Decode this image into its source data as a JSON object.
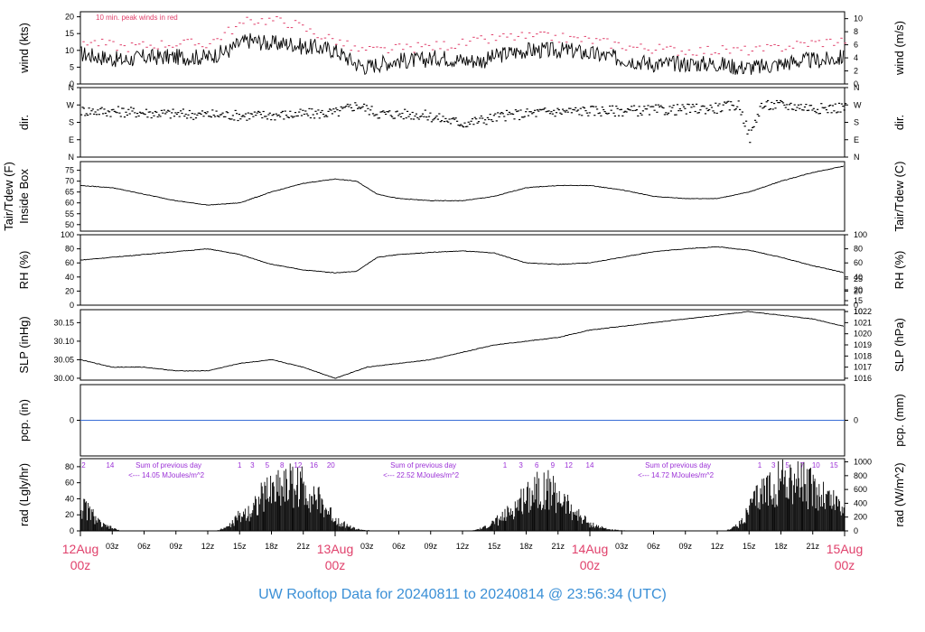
{
  "footer_title": "UW Rooftop Data for 20240811  to  20240814 @ 23:56:34  (UTC)",
  "colors": {
    "peak": "#e0406b",
    "radiation_labels": "#9b30d6",
    "precip_line": "#3a6ed6",
    "date_labels": "#e0406b",
    "title": "#3a8fd6"
  },
  "chart_data": {
    "type": "line",
    "x_axis": {
      "range_hours": [
        0,
        72
      ],
      "hour_ticks": [
        {
          "h": 3,
          "label": "03z"
        },
        {
          "h": 6,
          "label": "06z"
        },
        {
          "h": 9,
          "label": "09z"
        },
        {
          "h": 12,
          "label": "12z"
        },
        {
          "h": 15,
          "label": "15z"
        },
        {
          "h": 18,
          "label": "18z"
        },
        {
          "h": 21,
          "label": "21z"
        },
        {
          "h": 27,
          "label": "03z"
        },
        {
          "h": 30,
          "label": "06z"
        },
        {
          "h": 33,
          "label": "09z"
        },
        {
          "h": 36,
          "label": "12z"
        },
        {
          "h": 39,
          "label": "15z"
        },
        {
          "h": 42,
          "label": "18z"
        },
        {
          "h": 45,
          "label": "21z"
        },
        {
          "h": 51,
          "label": "03z"
        },
        {
          "h": 54,
          "label": "06z"
        },
        {
          "h": 57,
          "label": "09z"
        },
        {
          "h": 60,
          "label": "12z"
        },
        {
          "h": 63,
          "label": "15z"
        },
        {
          "h": 66,
          "label": "18z"
        },
        {
          "h": 69,
          "label": "21z"
        }
      ],
      "date_ticks": [
        {
          "h": 0,
          "date": "12Aug",
          "time": "00z"
        },
        {
          "h": 24,
          "date": "13Aug",
          "time": "00z"
        },
        {
          "h": 48,
          "date": "14Aug",
          "time": "00z"
        },
        {
          "h": 72,
          "date": "15Aug",
          "time": "00z"
        }
      ]
    },
    "panels": [
      {
        "key": "wind",
        "left_label": "wind (kts)",
        "right_label": "wind (m/s)",
        "left_ticks": [
          {
            "v": 0,
            "l": "0"
          },
          {
            "v": 5,
            "l": "5"
          },
          {
            "v": 10,
            "l": "10"
          },
          {
            "v": 15,
            "l": "15"
          },
          {
            "v": 20,
            "l": "20"
          }
        ],
        "right_ticks": [
          {
            "v": 0,
            "l": "0"
          },
          {
            "v": 2,
            "l": "2"
          },
          {
            "v": 4,
            "l": "4"
          },
          {
            "v": 6,
            "l": "6"
          },
          {
            "v": 8,
            "l": "8"
          },
          {
            "v": 10,
            "l": "10"
          }
        ],
        "ylim": [
          0,
          21.5
        ],
        "right_ylim": [
          0,
          11.06
        ],
        "annotation": "10 min. peak winds in red",
        "series": [
          {
            "x": [
              0,
              2,
              4,
              6,
              8,
              10,
              12,
              13,
              14,
              15,
              16,
              18,
              20,
              21,
              22,
              24,
              25,
              26,
              27,
              28,
              30,
              32,
              34,
              36,
              38,
              40,
              42,
              44,
              46,
              48,
              50,
              52,
              54,
              56,
              58,
              60,
              62,
              63,
              64,
              66,
              68,
              70,
              72
            ],
            "y": [
              9,
              8,
              7,
              8,
              8,
              8,
              8,
              9,
              10,
              12,
              13,
              12,
              12,
              11,
              11,
              10,
              8,
              6,
              5,
              6,
              7,
              7,
              8,
              7,
              7,
              9,
              10,
              10,
              10,
              9,
              8,
              7,
              6,
              6,
              6,
              6,
              5,
              5,
              5,
              6,
              7,
              7,
              8
            ]
          }
        ],
        "peak_series": {
          "x": [
            0,
            4,
            8,
            12,
            14,
            16,
            18,
            20,
            22,
            24,
            26,
            28,
            32,
            36,
            40,
            44,
            48,
            52,
            56,
            60,
            64,
            68,
            72
          ],
          "y": [
            13,
            11,
            12,
            12,
            16,
            19,
            19,
            18,
            15,
            13,
            10,
            10,
            11,
            12,
            14,
            14,
            13,
            11,
            10,
            10,
            10,
            12,
            13
          ]
        }
      },
      {
        "key": "dir",
        "left_label": "dir.",
        "right_label": "dir.",
        "left_ticks": [
          {
            "v": 0,
            "l": "N"
          },
          {
            "v": 90,
            "l": "E"
          },
          {
            "v": 180,
            "l": "S"
          },
          {
            "v": 270,
            "l": "W"
          },
          {
            "v": 360,
            "l": "N"
          }
        ],
        "right_ticks": [
          {
            "v": 0,
            "l": "N"
          },
          {
            "v": 90,
            "l": "E"
          },
          {
            "v": 180,
            "l": "S"
          },
          {
            "v": 270,
            "l": "W"
          },
          {
            "v": 360,
            "l": "N"
          }
        ],
        "ylim": [
          0,
          360
        ],
        "series": [
          {
            "x": [
              0,
              4,
              8,
              12,
              16,
              20,
              24,
              26,
              28,
              32,
              36,
              40,
              44,
              48,
              52,
              56,
              60,
              62,
              63,
              64,
              66,
              68,
              70,
              72
            ],
            "y": [
              240,
              235,
              225,
              220,
              215,
              220,
              230,
              270,
              225,
              220,
              175,
              215,
              235,
              240,
              240,
              245,
              255,
              270,
              100,
              265,
              270,
              260,
              250,
              260
            ]
          }
        ]
      },
      {
        "key": "temp",
        "left_label": "Tair/Tdew (F)",
        "left_label2": "Inside Box",
        "right_label": "Tair/Tdew (C)",
        "left_ticks": [
          {
            "v": 50,
            "l": "50"
          },
          {
            "v": 55,
            "l": "55"
          },
          {
            "v": 60,
            "l": "60"
          },
          {
            "v": 65,
            "l": "65"
          },
          {
            "v": 70,
            "l": "70"
          },
          {
            "v": 75,
            "l": "75"
          }
        ],
        "right_ticks": [
          {
            "v": 10,
            "l": "10"
          },
          {
            "v": 15,
            "l": "15"
          },
          {
            "v": 20,
            "l": "20"
          },
          {
            "v": 25,
            "l": "25"
          }
        ],
        "ylim": [
          47,
          79
        ],
        "series": [
          {
            "x": [
              0,
              3,
              6,
              9,
              12,
              15,
              18,
              21,
              24,
              26,
              28,
              30,
              33,
              36,
              39,
              42,
              45,
              48,
              51,
              54,
              57,
              60,
              63,
              66,
              69,
              72
            ],
            "y": [
              68,
              67,
              64,
              61,
              59,
              60,
              65,
              69,
              71,
              70,
              64,
              62,
              61,
              61,
              63,
              67,
              68,
              68,
              66,
              63,
              62,
              62,
              65,
              70,
              74,
              77
            ]
          }
        ]
      },
      {
        "key": "rh",
        "left_label": "RH (%)",
        "right_label": "RH (%)",
        "left_ticks": [
          {
            "v": 0,
            "l": "0"
          },
          {
            "v": 20,
            "l": "20"
          },
          {
            "v": 40,
            "l": "40"
          },
          {
            "v": 60,
            "l": "60"
          },
          {
            "v": 80,
            "l": "80"
          },
          {
            "v": 100,
            "l": "100"
          }
        ],
        "right_ticks": [
          {
            "v": 0,
            "l": "0"
          },
          {
            "v": 20,
            "l": "20"
          },
          {
            "v": 40,
            "l": "40"
          },
          {
            "v": 60,
            "l": "60"
          },
          {
            "v": 80,
            "l": "80"
          },
          {
            "v": 100,
            "l": "100"
          }
        ],
        "ylim": [
          0,
          100
        ],
        "series": [
          {
            "x": [
              0,
              3,
              6,
              9,
              12,
              15,
              18,
              21,
              24,
              26,
              28,
              30,
              33,
              36,
              39,
              42,
              45,
              48,
              51,
              54,
              57,
              60,
              63,
              66,
              69,
              72
            ],
            "y": [
              64,
              68,
              72,
              76,
              80,
              72,
              58,
              50,
              46,
              48,
              68,
              72,
              75,
              77,
              74,
              60,
              58,
              60,
              68,
              76,
              80,
              83,
              78,
              68,
              56,
              46
            ]
          }
        ]
      },
      {
        "key": "slp",
        "left_label": "SLP (inHg)",
        "right_label": "SLP (hPa)",
        "left_ticks": [
          {
            "v": 30.0,
            "l": "30.00"
          },
          {
            "v": 30.05,
            "l": "30.05"
          },
          {
            "v": 30.1,
            "l": "30.10"
          },
          {
            "v": 30.15,
            "l": "30.15"
          }
        ],
        "right_ticks": [
          {
            "v": 30.0,
            "l": "1016"
          },
          {
            "v": 30.03,
            "l": "1017"
          },
          {
            "v": 30.06,
            "l": "1018"
          },
          {
            "v": 30.09,
            "l": "1019"
          },
          {
            "v": 30.12,
            "l": "1020"
          },
          {
            "v": 30.15,
            "l": "1021"
          },
          {
            "v": 30.18,
            "l": "1022"
          }
        ],
        "ylim": [
          29.995,
          30.185
        ],
        "series": [
          {
            "x": [
              0,
              3,
              6,
              9,
              12,
              15,
              18,
              21,
              24,
              25,
              27,
              30,
              33,
              36,
              39,
              42,
              45,
              48,
              51,
              54,
              57,
              60,
              63,
              66,
              69,
              72
            ],
            "y": [
              30.05,
              30.03,
              30.03,
              30.02,
              30.02,
              30.04,
              30.05,
              30.03,
              30.0,
              30.01,
              30.03,
              30.04,
              30.05,
              30.07,
              30.09,
              30.1,
              30.11,
              30.13,
              30.14,
              30.15,
              30.16,
              30.17,
              30.18,
              30.17,
              30.16,
              30.14
            ]
          }
        ]
      },
      {
        "key": "pcp",
        "left_label": "pcp. (in)",
        "right_label": "pcp. (mm)",
        "left_ticks": [
          {
            "v": 0,
            "l": "0"
          }
        ],
        "right_ticks": [
          {
            "v": 0,
            "l": "0"
          }
        ],
        "ylim": [
          -0.5,
          0.5
        ],
        "series": [
          {
            "x": [
              0,
              72
            ],
            "y": [
              0,
              0
            ]
          }
        ]
      },
      {
        "key": "rad",
        "left_label": "rad (Lgly/hr)",
        "right_label": "rad (W/m^2)",
        "left_ticks": [
          {
            "v": 0,
            "l": "0"
          },
          {
            "v": 20,
            "l": "20"
          },
          {
            "v": 40,
            "l": "40"
          },
          {
            "v": 60,
            "l": "60"
          },
          {
            "v": 80,
            "l": "80"
          }
        ],
        "right_ticks": [
          {
            "v": 0,
            "l": "0"
          },
          {
            "v": 17.2,
            "l": "200"
          },
          {
            "v": 34.4,
            "l": "400"
          },
          {
            "v": 51.6,
            "l": "600"
          },
          {
            "v": 68.8,
            "l": "800"
          },
          {
            "v": 86,
            "l": "1000"
          }
        ],
        "ylim": [
          0,
          90
        ],
        "series": [
          {
            "x": [
              0,
              0.5,
              1,
              2,
              3,
              3.8,
              12.8,
              14,
              15,
              16,
              17,
              18,
              19,
              20,
              21,
              22,
              23,
              24,
              25,
              26,
              27,
              28,
              36.8,
              38,
              39,
              40,
              41,
              42,
              43,
              44,
              45,
              46,
              47,
              48,
              49,
              50,
              51,
              52,
              60.8,
              62,
              63,
              64,
              65,
              66,
              67,
              68,
              69,
              70,
              71,
              72
            ],
            "y": [
              40,
              38,
              30,
              10,
              5,
              0,
              0,
              8,
              25,
              35,
              55,
              70,
              80,
              80,
              75,
              60,
              40,
              20,
              10,
              3,
              1,
              0,
              0,
              5,
              15,
              25,
              40,
              60,
              75,
              70,
              60,
              40,
              25,
              12,
              6,
              2,
              1,
              0,
              0,
              10,
              35,
              60,
              75,
              90,
              85,
              80,
              70,
              60,
              50,
              40
            ]
          }
        ],
        "daily_notes": [
          {
            "h": 5.2,
            "line1": "Sum of previous day",
            "line2": "<--- 14.05 MJoules/m^2"
          },
          {
            "h": 29.2,
            "line1": "Sum of previous day",
            "line2": "<--- 22.52 MJoules/m^2"
          },
          {
            "h": 53.2,
            "line1": "Sum of previous day",
            "line2": "<--- 14.72 MJoules/m^2"
          }
        ],
        "hour_marks": [
          {
            "h": 0.3,
            "l": "2"
          },
          {
            "h": 2.8,
            "l": "14"
          },
          {
            "h": 15,
            "l": "1"
          },
          {
            "h": 16.2,
            "l": "3"
          },
          {
            "h": 17.6,
            "l": "5"
          },
          {
            "h": 19,
            "l": "8"
          },
          {
            "h": 20.5,
            "l": "12"
          },
          {
            "h": 22,
            "l": "16"
          },
          {
            "h": 23.6,
            "l": "20"
          },
          {
            "h": 40,
            "l": "1"
          },
          {
            "h": 41.5,
            "l": "3"
          },
          {
            "h": 43,
            "l": "6"
          },
          {
            "h": 44.5,
            "l": "9"
          },
          {
            "h": 46,
            "l": "12"
          },
          {
            "h": 48,
            "l": "14"
          },
          {
            "h": 64,
            "l": "1"
          },
          {
            "h": 65.3,
            "l": "3"
          },
          {
            "h": 66.6,
            "l": "5"
          },
          {
            "h": 68,
            "l": "7"
          },
          {
            "h": 69.3,
            "l": "10"
          },
          {
            "h": 71,
            "l": "15"
          }
        ]
      }
    ]
  }
}
